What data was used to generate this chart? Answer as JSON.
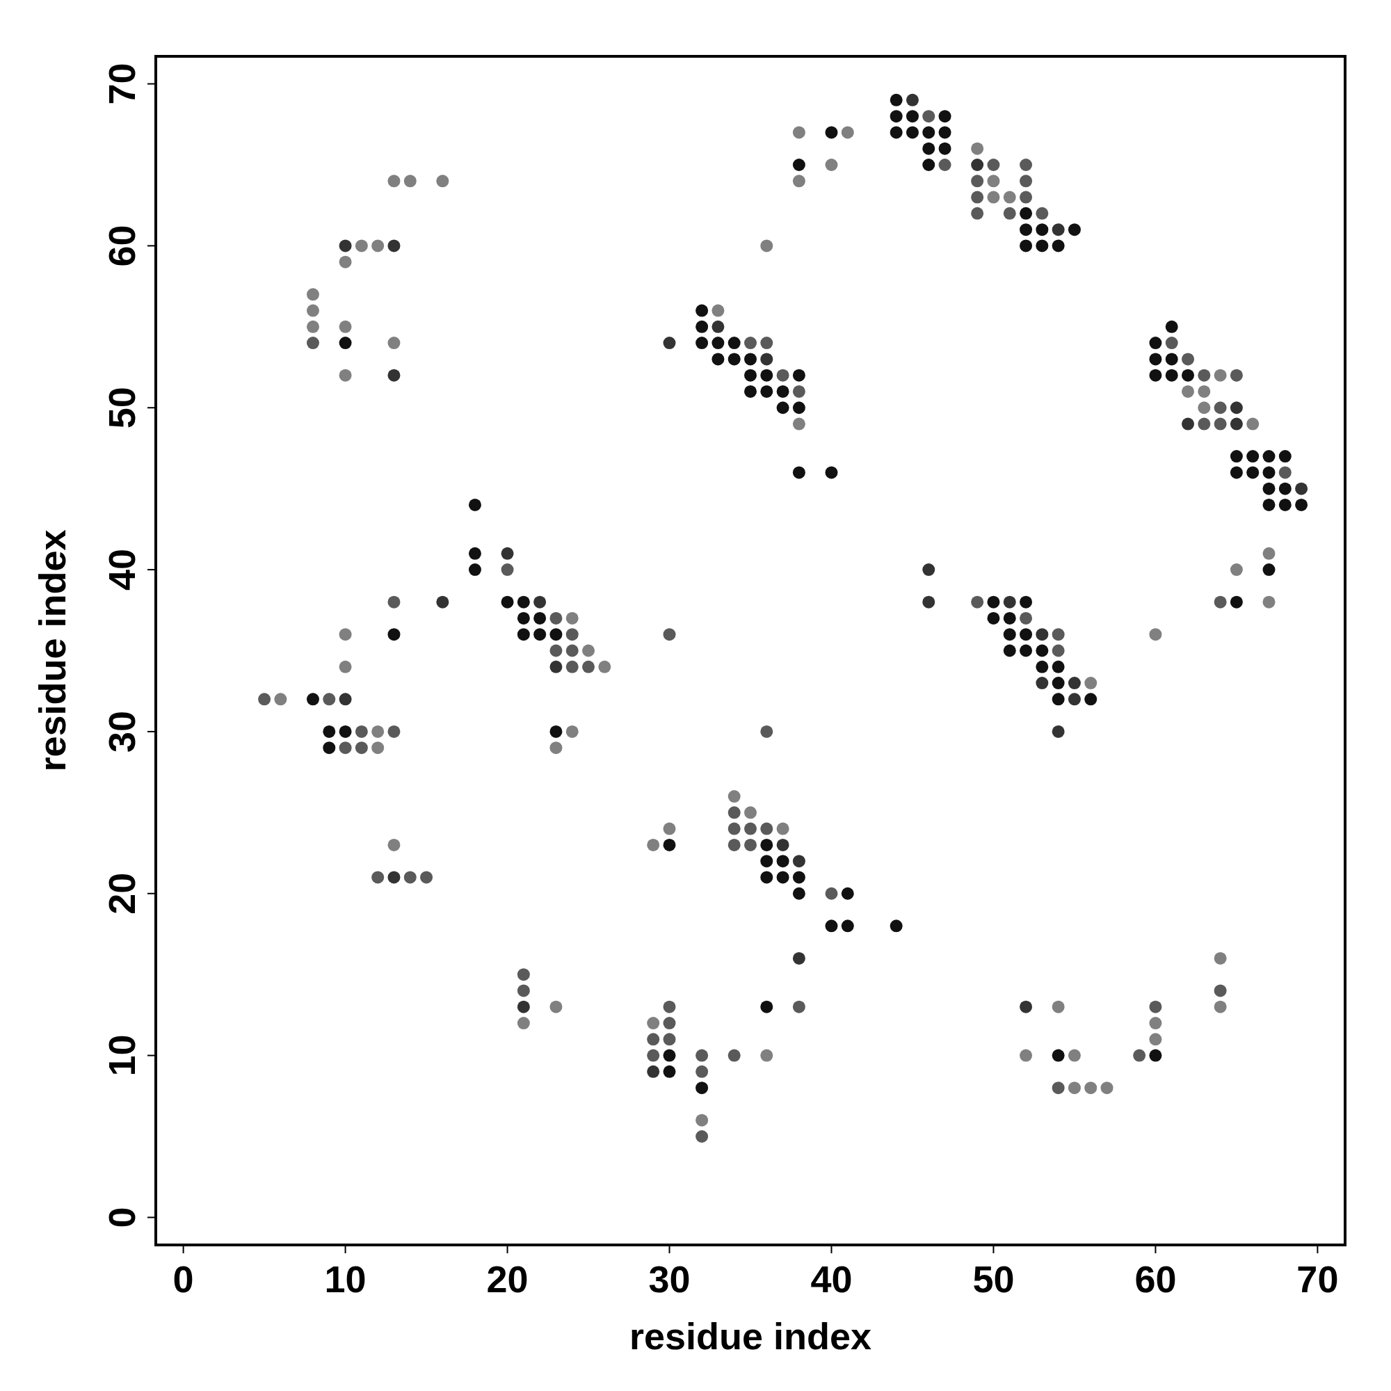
{
  "chart_data": {
    "type": "scatter",
    "xlabel": "residue index",
    "ylabel": "residue index",
    "xlim": [
      -1.7,
      71.7
    ],
    "ylim": [
      -1.7,
      71.7
    ],
    "xticks": [
      0,
      10,
      20,
      30,
      40,
      50,
      60,
      70
    ],
    "yticks": [
      0,
      10,
      20,
      30,
      40,
      50,
      60,
      70
    ],
    "marker": "circle",
    "series": [
      {
        "color": "#111111",
        "x": [
          10,
          40,
          38,
          44,
          44,
          45,
          47,
          44,
          45,
          46,
          47,
          46,
          47,
          46,
          52,
          52,
          53,
          55,
          52,
          53,
          54,
          32,
          32,
          32,
          33,
          34,
          33,
          34,
          35,
          35,
          36,
          38,
          35,
          36,
          37,
          37,
          38,
          38,
          40,
          61,
          60,
          60,
          61,
          60,
          61,
          62,
          65,
          66,
          67,
          68,
          65,
          66,
          67,
          67,
          68,
          67,
          68,
          69,
          67,
          65,
          50,
          52,
          50,
          51,
          51,
          52,
          51,
          52,
          53,
          53,
          54,
          54,
          54,
          56,
          18,
          18,
          18,
          20,
          21,
          21,
          22,
          21,
          22,
          23,
          23,
          13,
          8,
          9,
          10,
          9,
          30,
          36,
          36,
          37,
          36,
          37,
          38,
          38,
          41,
          40,
          41,
          44,
          30,
          30,
          32,
          36,
          54,
          60
        ],
        "values": [
          54,
          67,
          65,
          69,
          68,
          68,
          68,
          67,
          67,
          67,
          67,
          66,
          66,
          65,
          62,
          61,
          61,
          61,
          60,
          60,
          60,
          56,
          55,
          54,
          54,
          54,
          53,
          53,
          53,
          52,
          52,
          52,
          51,
          51,
          51,
          50,
          50,
          46,
          46,
          55,
          54,
          53,
          53,
          52,
          52,
          52,
          47,
          47,
          47,
          47,
          46,
          46,
          46,
          45,
          45,
          44,
          44,
          44,
          40,
          38,
          38,
          38,
          37,
          37,
          36,
          36,
          35,
          35,
          35,
          34,
          34,
          33,
          32,
          32,
          44,
          41,
          40,
          38,
          38,
          37,
          37,
          36,
          36,
          36,
          30,
          36,
          32,
          30,
          30,
          29,
          23,
          23,
          22,
          22,
          21,
          21,
          21,
          20,
          20,
          18,
          18,
          18,
          10,
          9,
          8,
          13,
          10,
          10
        ]
      },
      {
        "color": "#333333",
        "x": [
          10,
          13,
          13,
          45,
          49,
          54,
          33,
          30,
          36,
          65,
          62,
          65,
          69,
          46,
          46,
          51,
          53,
          53,
          55,
          55,
          54,
          20,
          16,
          22,
          23,
          10,
          13,
          37,
          38,
          21,
          29,
          38,
          52
        ],
        "values": [
          60,
          60,
          52,
          69,
          65,
          61,
          55,
          54,
          53,
          50,
          49,
          49,
          45,
          40,
          38,
          38,
          36,
          33,
          33,
          32,
          30,
          41,
          38,
          38,
          34,
          32,
          21,
          23,
          22,
          13,
          9,
          16,
          13
        ]
      },
      {
        "color": "#5a5a5a",
        "x": [
          8,
          46,
          47,
          50,
          52,
          49,
          52,
          49,
          52,
          49,
          51,
          53,
          35,
          36,
          37,
          38,
          61,
          62,
          63,
          65,
          64,
          63,
          64,
          68,
          64,
          49,
          52,
          54,
          54,
          20,
          23,
          24,
          23,
          24,
          24,
          25,
          13,
          5,
          9,
          11,
          13,
          10,
          11,
          30,
          36,
          12,
          14,
          15,
          34,
          34,
          35,
          36,
          34,
          35,
          40,
          21,
          21,
          30,
          30,
          29,
          30,
          29,
          32,
          32,
          32,
          34,
          38,
          54,
          59,
          60,
          64
        ],
        "values": [
          54,
          68,
          65,
          65,
          65,
          64,
          64,
          63,
          63,
          62,
          62,
          62,
          54,
          54,
          52,
          51,
          54,
          53,
          52,
          52,
          50,
          49,
          49,
          46,
          38,
          38,
          37,
          36,
          35,
          40,
          37,
          36,
          35,
          35,
          34,
          34,
          38,
          32,
          32,
          30,
          30,
          29,
          29,
          36,
          30,
          21,
          21,
          21,
          25,
          24,
          24,
          24,
          23,
          23,
          20,
          15,
          14,
          13,
          12,
          11,
          11,
          10,
          10,
          9,
          5,
          10,
          13,
          8,
          10,
          13,
          14
        ]
      },
      {
        "color": "#808080",
        "x": [
          13,
          14,
          16,
          11,
          12,
          10,
          8,
          8,
          8,
          10,
          13,
          10,
          38,
          41,
          40,
          38,
          36,
          49,
          50,
          50,
          51,
          33,
          38,
          64,
          62,
          63,
          63,
          66,
          67,
          65,
          67,
          60,
          56,
          24,
          25,
          26,
          24,
          23,
          10,
          10,
          6,
          12,
          12,
          13,
          29,
          30,
          34,
          35,
          37,
          21,
          23,
          29,
          32,
          36,
          52,
          54,
          55,
          55,
          56,
          57,
          60,
          60,
          64,
          64
        ],
        "values": [
          64,
          64,
          64,
          60,
          60,
          59,
          57,
          56,
          55,
          55,
          54,
          52,
          67,
          67,
          65,
          64,
          60,
          66,
          64,
          63,
          63,
          56,
          49,
          52,
          51,
          51,
          50,
          49,
          41,
          40,
          38,
          36,
          33,
          37,
          35,
          34,
          30,
          29,
          36,
          34,
          32,
          30,
          29,
          23,
          23,
          24,
          26,
          25,
          24,
          12,
          13,
          12,
          6,
          10,
          10,
          13,
          10,
          8,
          8,
          8,
          11,
          12,
          16,
          13
        ]
      }
    ]
  }
}
